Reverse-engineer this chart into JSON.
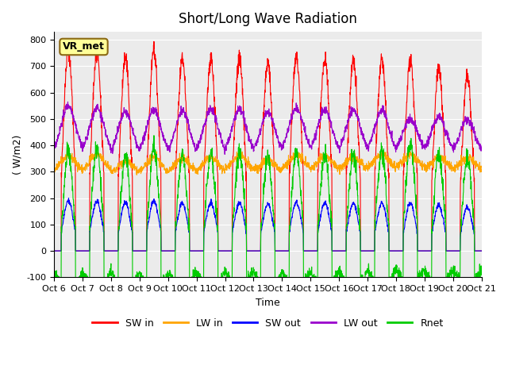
{
  "title": "Short/Long Wave Radiation",
  "xlabel": "Time",
  "ylabel": "( W/m2)",
  "ylim": [
    -100,
    830
  ],
  "yticks": [
    -100,
    0,
    100,
    200,
    300,
    400,
    500,
    600,
    700,
    800
  ],
  "n_days": 15,
  "n_pts_per_day": 144,
  "colors": {
    "SW_in": "#FF0000",
    "LW_in": "#FFA500",
    "SW_out": "#0000FF",
    "LW_out": "#9900CC",
    "Rnet": "#00CC00"
  },
  "legend_labels": [
    "SW in",
    "LW in",
    "SW out",
    "LW out",
    "Rnet"
  ],
  "station_label": "VR_met",
  "bg_color": "#E8E8E8",
  "plot_bg": "#F0F0F0"
}
